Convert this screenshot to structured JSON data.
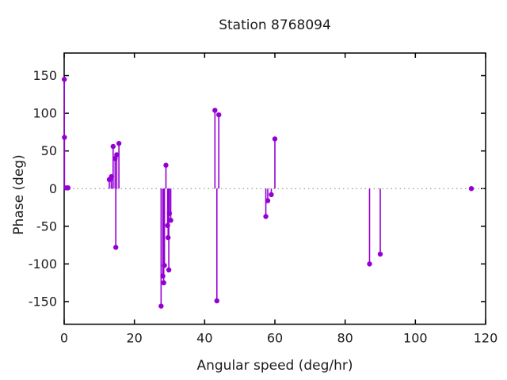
{
  "window": {
    "title": "Station 8768094"
  },
  "colors": {
    "accent": "#9400D3",
    "axis": "#000000",
    "zero_line": "#9a9a9a",
    "background": "#ffffff",
    "text": "#1c1c1c"
  },
  "chart_data": {
    "type": "scatter",
    "style": "impulses-with-points",
    "title": "Station 8768094",
    "xlabel": "Angular speed (deg/hr)",
    "ylabel": "Phase (deg)",
    "xlim": [
      0,
      120
    ],
    "ylim": [
      -180,
      180
    ],
    "xticks": [
      0,
      20,
      40,
      60,
      80,
      100,
      120
    ],
    "yticks": [
      -150,
      -100,
      -50,
      0,
      50,
      100,
      150
    ],
    "grid": false,
    "zero_line_dotted": true,
    "legend": "none",
    "point_color": "#9400D3",
    "points": [
      [
        0.04,
        145
      ],
      [
        0.08,
        68
      ],
      [
        0.54,
        1
      ],
      [
        1.02,
        1
      ],
      [
        1.1,
        1
      ],
      [
        12.85,
        12
      ],
      [
        13.4,
        14
      ],
      [
        13.47,
        16
      ],
      [
        13.94,
        56
      ],
      [
        14.5,
        40
      ],
      [
        14.7,
        -78
      ],
      [
        14.96,
        45
      ],
      [
        15.59,
        60
      ],
      [
        27.6,
        -156
      ],
      [
        28.1,
        -116
      ],
      [
        28.35,
        -125
      ],
      [
        28.55,
        -102
      ],
      [
        28.98,
        31
      ],
      [
        29.46,
        -49
      ],
      [
        29.6,
        -65
      ],
      [
        29.8,
        -108
      ],
      [
        29.96,
        -33
      ],
      [
        30.35,
        -42
      ],
      [
        42.93,
        104
      ],
      [
        43.48,
        -149
      ],
      [
        44.03,
        98
      ],
      [
        57.42,
        -37
      ],
      [
        57.97,
        -16
      ],
      [
        58.98,
        -8
      ],
      [
        60.0,
        66
      ],
      [
        86.95,
        -100
      ],
      [
        90.0,
        -87
      ],
      [
        115.94,
        0
      ]
    ]
  }
}
